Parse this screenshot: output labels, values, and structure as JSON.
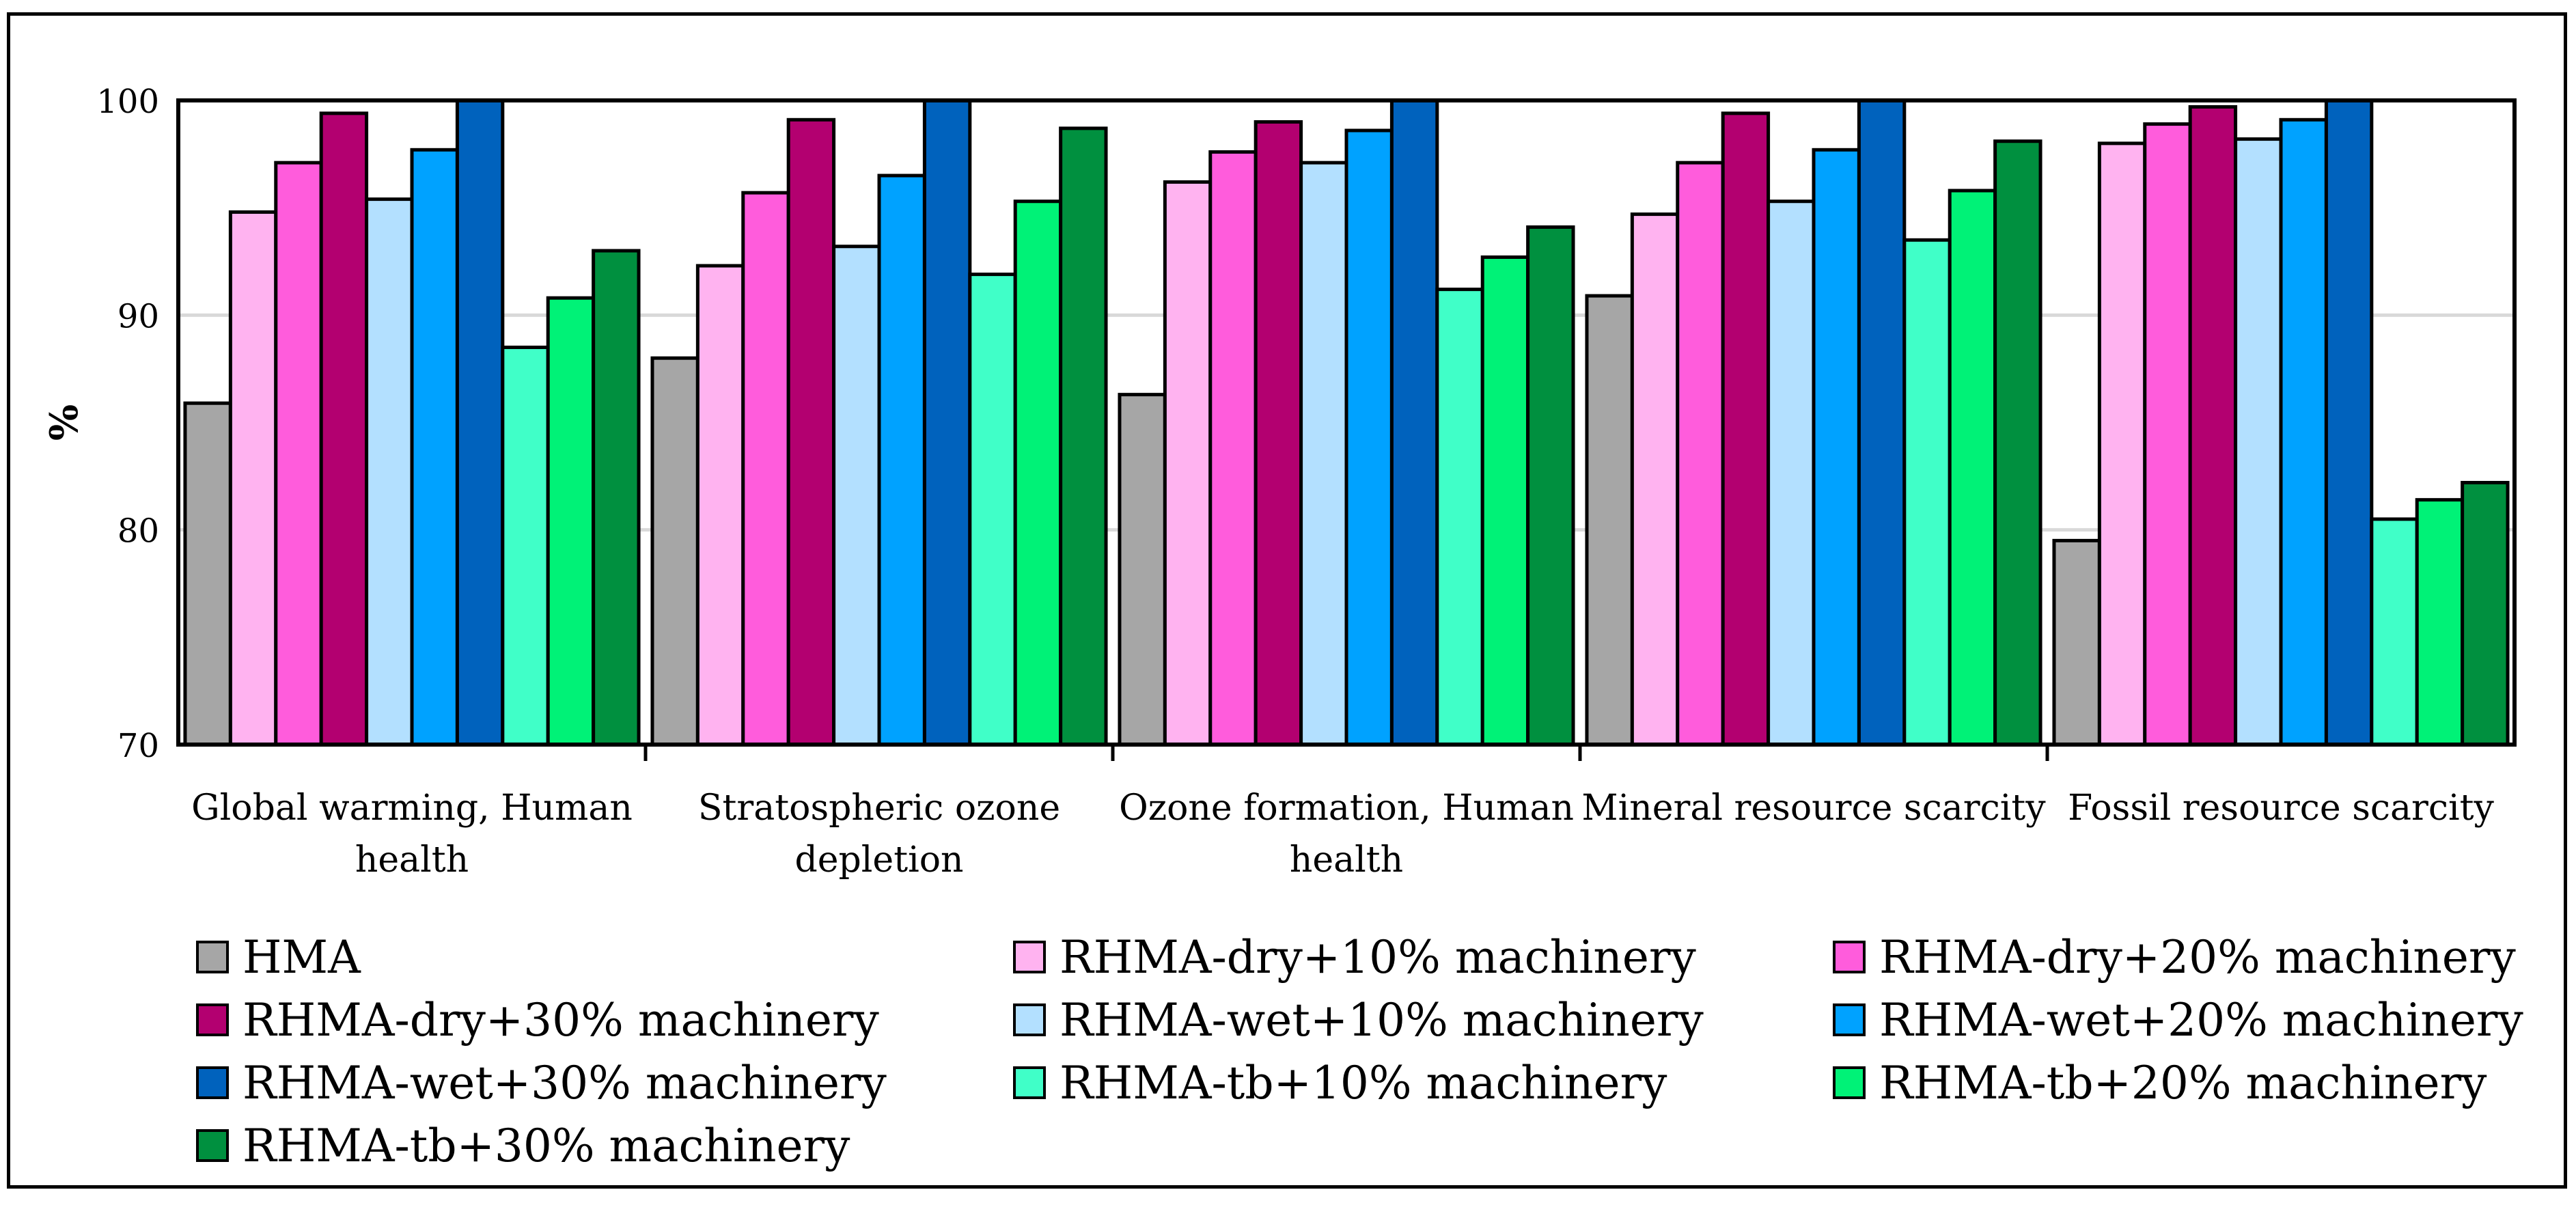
{
  "chart_data": {
    "type": "bar",
    "title": "",
    "xlabel": "",
    "ylabel": "%",
    "ylim": [
      70,
      100
    ],
    "yticks": [
      70,
      80,
      90,
      100
    ],
    "grid": true,
    "categories": [
      [
        "Global warming, Human",
        "health"
      ],
      [
        "Stratospheric ozone",
        "depletion"
      ],
      [
        "Ozone formation, Human",
        "health"
      ],
      [
        "Mineral resource scarcity"
      ],
      [
        "Fossil resource scarcity"
      ]
    ],
    "series": [
      {
        "name": "HMA",
        "color": "#A6A6A6",
        "values": [
          85.9,
          88.0,
          86.3,
          90.9,
          79.5
        ]
      },
      {
        "name": "RHMA-dry+10% machinery",
        "color": "#FFB3F0",
        "values": [
          94.8,
          92.3,
          96.2,
          94.7,
          98.0
        ]
      },
      {
        "name": "RHMA-dry+20% machinery",
        "color": "#FF5CDC",
        "values": [
          97.1,
          95.7,
          97.6,
          97.1,
          98.9
        ]
      },
      {
        "name": "RHMA-dry+30% machinery",
        "color": "#B30070",
        "values": [
          99.4,
          99.1,
          99.0,
          99.4,
          99.7
        ]
      },
      {
        "name": "RHMA-wet+10% machinery",
        "color": "#B3E0FF",
        "values": [
          95.4,
          93.2,
          97.1,
          95.3,
          98.2
        ]
      },
      {
        "name": "RHMA-wet+20% machinery",
        "color": "#00A2FF",
        "values": [
          97.7,
          96.5,
          98.6,
          97.7,
          99.1
        ]
      },
      {
        "name": "RHMA-wet+30% machinery",
        "color": "#0062BD",
        "values": [
          100,
          100,
          100,
          100,
          100
        ]
      },
      {
        "name": "RHMA-tb+10% machinery",
        "color": "#40FFC8",
        "values": [
          88.5,
          91.9,
          91.2,
          93.5,
          80.5
        ]
      },
      {
        "name": "RHMA-tb+20% machinery",
        "color": "#00F277",
        "values": [
          90.8,
          95.3,
          92.7,
          95.8,
          81.4
        ]
      },
      {
        "name": "RHMA-tb+30% machinery",
        "color": "#00903F",
        "values": [
          93.0,
          98.7,
          94.1,
          98.1,
          82.2
        ]
      }
    ]
  }
}
